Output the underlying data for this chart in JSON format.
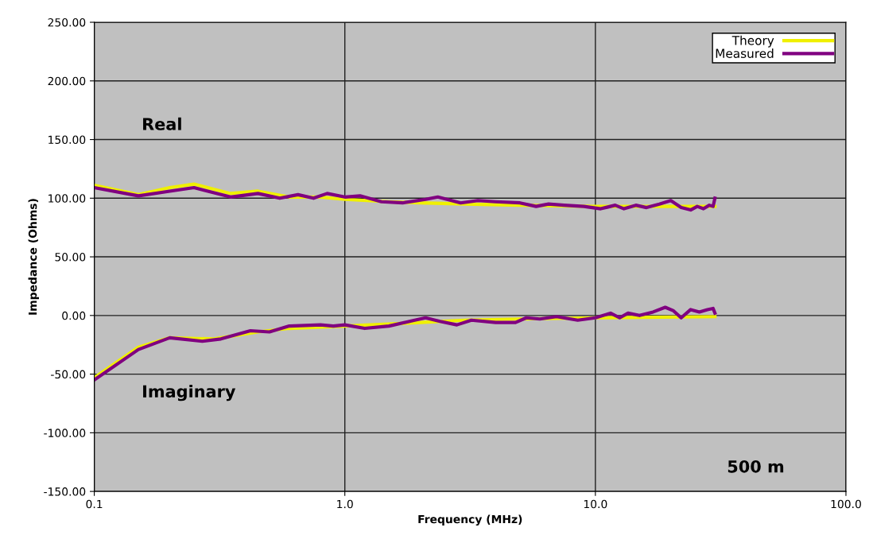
{
  "chart_data": {
    "type": "line",
    "xlabel": "Frequency (MHz)",
    "ylabel": "Impedance (Ohms)",
    "log": "x",
    "xlim": [
      0.1,
      100
    ],
    "xticks": [
      {
        "value": 0.1,
        "label": "0.1"
      },
      {
        "value": 1,
        "label": "1.0"
      },
      {
        "value": 10,
        "label": "10.0"
      },
      {
        "value": 100,
        "label": "100.0"
      }
    ],
    "ylim": [
      -150,
      250
    ],
    "yticks": [
      {
        "value": -150,
        "label": "-150.00"
      },
      {
        "value": -100,
        "label": "-100.00"
      },
      {
        "value": -50,
        "label": "-50.00"
      },
      {
        "value": 0,
        "label": "0.00"
      },
      {
        "value": 50,
        "label": "50.00"
      },
      {
        "value": 100,
        "label": "100.00"
      },
      {
        "value": 150,
        "label": "150.00"
      },
      {
        "value": 200,
        "label": "200.00"
      },
      {
        "value": 250,
        "label": "250.00"
      }
    ],
    "grid": true,
    "legend": "top right",
    "marker": "none",
    "line_style": "solid",
    "series": [
      {
        "name": "Theory",
        "color": "#f0f000",
        "x": [
          0.1,
          0.15,
          0.2,
          0.25,
          0.35,
          0.45,
          0.6,
          0.8,
          1.0,
          1.5,
          2,
          3,
          5,
          10,
          20,
          30
        ],
        "values": [
          111,
          103,
          109,
          112,
          104,
          106,
          101,
          101,
          99,
          97,
          96,
          95,
          94,
          93,
          93,
          93
        ]
      },
      {
        "name": "Measured",
        "color": "#800080",
        "x": [
          0.1,
          0.15,
          0.2,
          0.25,
          0.35,
          0.45,
          0.55,
          0.65,
          0.75,
          0.85,
          1.0,
          1.15,
          1.4,
          1.7,
          2.1,
          2.35,
          2.9,
          3.4,
          4.0,
          5,
          5.8,
          6.5,
          7.5,
          9,
          10.5,
          12,
          13,
          14.5,
          16,
          18,
          20,
          22,
          24,
          25.5,
          27,
          28.5,
          29.5,
          30
        ],
        "values": [
          109,
          102,
          106,
          109,
          101,
          104,
          100,
          103,
          100,
          104,
          101,
          102,
          97,
          96,
          99,
          101,
          96,
          98,
          97,
          96,
          93,
          95,
          94,
          93,
          91,
          94,
          91,
          94,
          92,
          95,
          98,
          92,
          90,
          93,
          91,
          94,
          93,
          100
        ]
      },
      {
        "color": "#f0f000",
        "x": [
          0.1,
          0.15,
          0.2,
          0.3,
          0.45,
          0.6,
          1.0,
          2,
          3,
          5,
          10,
          30
        ],
        "values": [
          -53,
          -27,
          -19,
          -20,
          -14,
          -11,
          -9,
          -6,
          -4,
          -3,
          -2,
          -1
        ]
      },
      {
        "color": "#800080",
        "x": [
          0.1,
          0.15,
          0.2,
          0.27,
          0.32,
          0.42,
          0.5,
          0.6,
          0.8,
          0.9,
          1.0,
          1.2,
          1.5,
          1.9,
          2.1,
          2.4,
          2.8,
          3.2,
          4,
          4.8,
          5.3,
          6,
          7,
          8.5,
          10,
          11.5,
          12.5,
          13.5,
          15,
          17,
          19,
          20.5,
          22,
          24,
          26,
          28,
          29.5,
          30
        ],
        "values": [
          -55,
          -29,
          -19,
          -22,
          -20,
          -13,
          -14,
          -9,
          -8,
          -9,
          -8,
          -11,
          -9,
          -4,
          -2,
          -5,
          -8,
          -4,
          -6,
          -6,
          -2,
          -3,
          -1,
          -4,
          -2,
          2,
          -2,
          2,
          0,
          3,
          7,
          4,
          -2,
          5,
          3,
          5,
          6,
          2
        ]
      }
    ],
    "annotations": [
      "Real",
      "Imaginary",
      "500 m"
    ]
  }
}
